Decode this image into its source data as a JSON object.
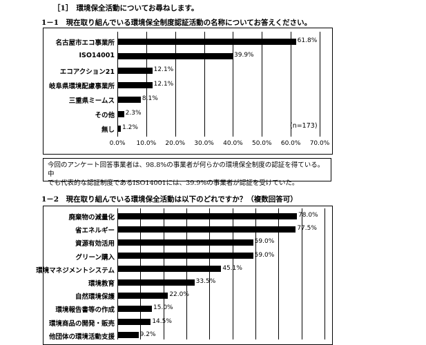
{
  "section_title": "［1］　環境保全活動についてお尋ねします。",
  "q1": {
    "title": "1－1　現在取り組んでいる環境保全制度認証活動の名称についてお答えください。"
  },
  "q2": {
    "title": "1－2　現在取り組んでいる環境保全活動は以下のどれですか？（複数回答可）"
  },
  "note": {
    "line1": "今回のアンケート回答事業者は、98.8%の事業者が何らかの環境保全制度の認証を得ている。中",
    "line2": "でも代表的な認証制度であるISO14001には、39.9%の事業者が認証を受けていた。"
  },
  "chart_data": [
    {
      "type": "bar",
      "orientation": "horizontal",
      "categories": [
        "名古屋市エコ事業所",
        "ISO14001",
        "エコアクション21",
        "岐阜県環境配慮事業所",
        "三重県ミームス",
        "その他",
        "無し"
      ],
      "values": [
        61.8,
        39.9,
        12.1,
        12.1,
        8.1,
        2.3,
        1.2
      ],
      "value_labels": [
        "61.8%",
        "39.9%",
        "12.1%",
        "12.1%",
        "8.1%",
        "2.3%",
        "1.2%"
      ],
      "ticks": [
        "0.0%",
        "10.0%",
        "20.0%",
        "30.0%",
        "40.0%",
        "50.0%",
        "60.0%",
        "70.0%"
      ],
      "xlim": [
        0,
        70
      ],
      "annotation": "(n=173)",
      "grid": true
    },
    {
      "type": "bar",
      "orientation": "horizontal",
      "categories": [
        "廃棄物の減量化",
        "省エネルギー",
        "資源有効活用",
        "グリーン購入",
        "環境マネジメントシステム",
        "環境教育",
        "自然環境保護",
        "環境報告書等の作成",
        "環境商品の開発・販売",
        "他団体の環境活動支援"
      ],
      "values": [
        78.0,
        77.5,
        59.0,
        59.0,
        45.1,
        33.5,
        22.0,
        15.0,
        14.5,
        9.2
      ],
      "value_labels": [
        "78.0%",
        "77.5%",
        "59.0%",
        "59.0%",
        "45.1%",
        "33.5%",
        "22.0%",
        "15.0%",
        "14.5%",
        "9.2%"
      ],
      "xlim": [
        0,
        90
      ],
      "grid": true
    }
  ]
}
